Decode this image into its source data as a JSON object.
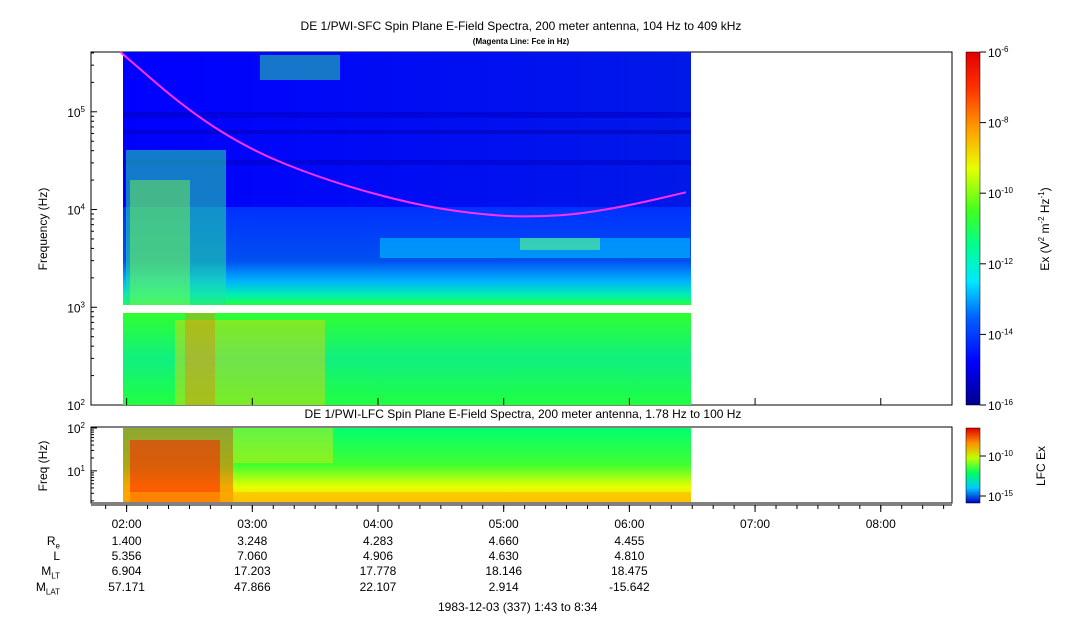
{
  "chart_data": [
    {
      "type": "heatmap",
      "title": "DE 1/PWI-SFC  Spin Plane E-Field Spectra, 200 meter antenna, 104 Hz to 409 kHz",
      "subtitle": "(Magenta Line: Fce in Hz)",
      "ylabel": "Frequency (Hz)",
      "yscale": "log",
      "ylim": [
        100,
        409000
      ],
      "yticks": [
        {
          "base": "10",
          "exp": "5",
          "value": 100000
        },
        {
          "base": "10",
          "exp": "4",
          "value": 10000
        },
        {
          "base": "10",
          "exp": "3",
          "value": 1000
        },
        {
          "base": "10",
          "exp": "2",
          "value": 100
        }
      ],
      "data_time_range_hours": [
        1.95,
        6.47
      ],
      "gap_frequency_hz": [
        900,
        1050
      ],
      "fce_line": {
        "color": "#ff30ff",
        "points": [
          [
            1.95,
            409000
          ],
          [
            2.5,
            100000
          ],
          [
            3.0,
            40000
          ],
          [
            3.5,
            22000
          ],
          [
            4.0,
            14000
          ],
          [
            4.5,
            10000
          ],
          [
            5.0,
            8500
          ],
          [
            5.3,
            8500
          ],
          [
            5.6,
            9000
          ],
          [
            6.0,
            11000
          ],
          [
            6.45,
            15000
          ]
        ]
      },
      "colorbar": {
        "label_prefix": "Ex (V",
        "label_m": " m",
        "label_hz": " Hz",
        "label_suffix": ")",
        "sup_2": "2",
        "sup_m": "-2",
        "sup_hz": "-1",
        "scale": "log",
        "range": [
          1e-16,
          1e-06
        ],
        "ticks": [
          {
            "base": "10",
            "exp": "-6",
            "value": 1e-06
          },
          {
            "base": "10",
            "exp": "-8",
            "value": 1e-08
          },
          {
            "base": "10",
            "exp": "-10",
            "value": 1e-10
          },
          {
            "base": "10",
            "exp": "-12",
            "value": 1e-12
          },
          {
            "base": "10",
            "exp": "-14",
            "value": 1e-14
          },
          {
            "base": "10",
            "exp": "-16",
            "value": 1e-16
          }
        ]
      }
    },
    {
      "type": "heatmap",
      "title": "DE 1/PWI-LFC  Spin Plane E-Field Spectra, 200 meter antenna, 1.78 Hz to 100 Hz",
      "ylabel": "Freq (Hz)",
      "yscale": "log",
      "ylim": [
        1.78,
        100
      ],
      "yticks": [
        {
          "base": "10",
          "exp": "2",
          "value": 100
        },
        {
          "base": "10",
          "exp": "1",
          "value": 10
        }
      ],
      "data_time_range_hours": [
        1.95,
        6.47
      ],
      "colorbar": {
        "label": "LFC Ex",
        "scale": "log",
        "ticks": [
          {
            "base": "10",
            "exp": "-10",
            "value": 1e-10
          },
          {
            "base": "10",
            "exp": "-15",
            "value": 1e-15
          }
        ]
      }
    }
  ],
  "time_axis": {
    "range_hours": [
      1.7167,
      8.5667
    ],
    "ticks": [
      {
        "label": "02:00",
        "value": 2
      },
      {
        "label": "03:00",
        "value": 3
      },
      {
        "label": "04:00",
        "value": 4
      },
      {
        "label": "05:00",
        "value": 5
      },
      {
        "label": "06:00",
        "value": 6
      },
      {
        "label": "07:00",
        "value": 7
      },
      {
        "label": "08:00",
        "value": 8
      }
    ]
  },
  "ephemeris": [
    {
      "label": "R",
      "sub": "e",
      "values": [
        "1.400",
        "3.248",
        "4.283",
        "4.660",
        "4.455"
      ]
    },
    {
      "label": "L",
      "sub": "",
      "values": [
        "5.356",
        "7.060",
        "4.906",
        "4.630",
        "4.810"
      ]
    },
    {
      "label": "M",
      "sub": "LT",
      "values": [
        "6.904",
        "17.203",
        "17.778",
        "18.146",
        "18.475"
      ]
    },
    {
      "label": "M",
      "sub": "LAT",
      "values": [
        "57.171",
        "47.866",
        "22.107",
        "2.914",
        "-15.642"
      ]
    }
  ],
  "footer": "1983-12-03 (337) 1:43 to 8:34"
}
